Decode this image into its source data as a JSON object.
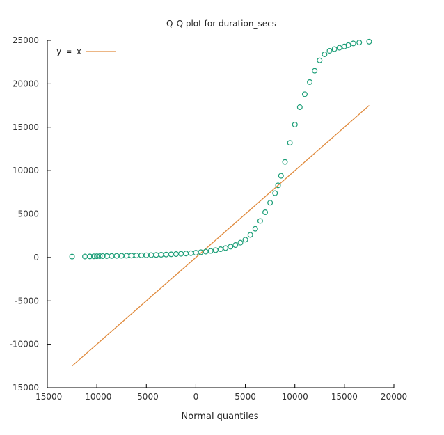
{
  "chart_data": {
    "type": "scatter",
    "title": "Q-Q plot for duration_secs",
    "xlabel": "Normal quantiles",
    "ylabel": "",
    "xlim": [
      -15000,
      20000
    ],
    "ylim": [
      -15000,
      25000
    ],
    "x_ticks": [
      -15000,
      -10000,
      -5000,
      0,
      5000,
      10000,
      15000,
      20000
    ],
    "y_ticks": [
      -15000,
      -10000,
      -5000,
      0,
      5000,
      10000,
      15000,
      20000,
      25000
    ],
    "x_tick_labels": [
      "-15000",
      "-10000",
      "-5000",
      "0",
      "5000",
      "10000",
      "15000",
      "20000"
    ],
    "y_tick_labels": [
      "-15000",
      "-10000",
      "-5000",
      "0",
      "5000",
      "10000",
      "15000",
      "20000",
      "25000"
    ],
    "grid": false,
    "legend": {
      "position": "top-left",
      "entries": [
        {
          "label": "y = x",
          "color": "#e08a3c"
        }
      ]
    },
    "colors": {
      "points": "#1b9e77",
      "reference_line": "#e08a3c",
      "axis": "#000000"
    },
    "series": [
      {
        "marker": "open-circle",
        "points": [
          [
            -12500,
            100
          ],
          [
            -11200,
            110
          ],
          [
            -10700,
            120
          ],
          [
            -10300,
            130
          ],
          [
            -10000,
            140
          ],
          [
            -9700,
            150
          ],
          [
            -9400,
            155
          ],
          [
            -9000,
            160
          ],
          [
            -8500,
            170
          ],
          [
            -8000,
            180
          ],
          [
            -7500,
            190
          ],
          [
            -7000,
            200
          ],
          [
            -6500,
            210
          ],
          [
            -6000,
            225
          ],
          [
            -5500,
            240
          ],
          [
            -5000,
            255
          ],
          [
            -4500,
            270
          ],
          [
            -4000,
            290
          ],
          [
            -3500,
            310
          ],
          [
            -3000,
            335
          ],
          [
            -2500,
            360
          ],
          [
            -2000,
            390
          ],
          [
            -1500,
            420
          ],
          [
            -1000,
            455
          ],
          [
            -500,
            495
          ],
          [
            0,
            540
          ],
          [
            500,
            600
          ],
          [
            1000,
            670
          ],
          [
            1500,
            750
          ],
          [
            2000,
            840
          ],
          [
            2500,
            950
          ],
          [
            3000,
            1080
          ],
          [
            3500,
            1240
          ],
          [
            4000,
            1430
          ],
          [
            4500,
            1700
          ],
          [
            5000,
            2050
          ],
          [
            5500,
            2600
          ],
          [
            6000,
            3300
          ],
          [
            6500,
            4200
          ],
          [
            7000,
            5200
          ],
          [
            7500,
            6300
          ],
          [
            8000,
            7400
          ],
          [
            8300,
            8300
          ],
          [
            8600,
            9400
          ],
          [
            9000,
            11000
          ],
          [
            9500,
            13200
          ],
          [
            10000,
            15300
          ],
          [
            10500,
            17300
          ],
          [
            11000,
            18800
          ],
          [
            11500,
            20200
          ],
          [
            12000,
            21500
          ],
          [
            12500,
            22700
          ],
          [
            13000,
            23400
          ],
          [
            13500,
            23800
          ],
          [
            14000,
            24000
          ],
          [
            14500,
            24150
          ],
          [
            15000,
            24300
          ],
          [
            15400,
            24450
          ],
          [
            15900,
            24650
          ],
          [
            16500,
            24750
          ],
          [
            17500,
            24850
          ]
        ]
      }
    ],
    "reference_line": {
      "label": "y = x",
      "x": [
        -12500,
        17500
      ],
      "y": [
        -12500,
        17500
      ]
    }
  }
}
